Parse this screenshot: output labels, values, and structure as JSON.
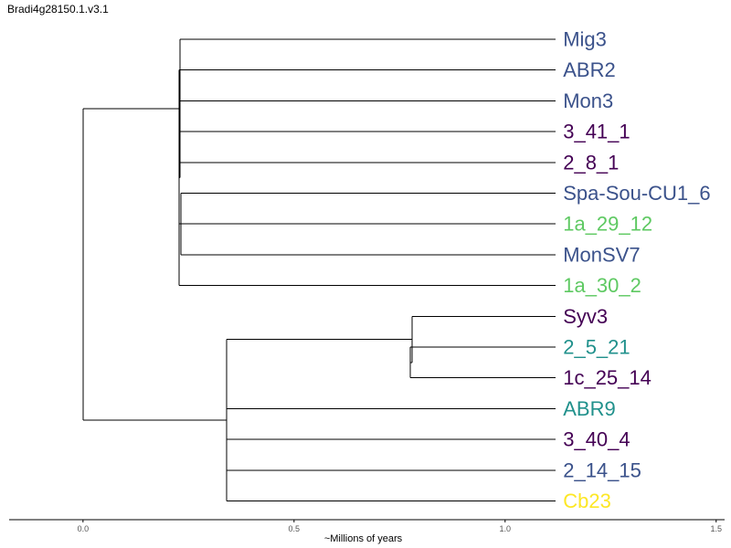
{
  "title": "Bradi4g28150.1.v3.1",
  "colors": {
    "blue": "#3b528b",
    "purple": "#440154",
    "green": "#5ec962",
    "teal": "#21918c",
    "yellow": "#fde725"
  },
  "chart_data": {
    "type": "dendrogram",
    "xlabel": "~Millions of years",
    "xlim": [
      -0.175,
      1.52
    ],
    "xticks": [
      0.0,
      0.5,
      1.0,
      1.5
    ],
    "xtick_labels": [
      "0.0",
      "0.5",
      "1.0",
      "1.5"
    ],
    "tip_x": 1.12,
    "leaves": [
      {
        "name": "Mig3",
        "color": "blue"
      },
      {
        "name": "ABR2",
        "color": "blue"
      },
      {
        "name": "Mon3",
        "color": "blue"
      },
      {
        "name": "3_41_1",
        "color": "purple"
      },
      {
        "name": "2_8_1",
        "color": "purple"
      },
      {
        "name": "Spa-Sou-CU1_6",
        "color": "blue"
      },
      {
        "name": "1a_29_12",
        "color": "green"
      },
      {
        "name": "MonSV7",
        "color": "blue"
      },
      {
        "name": "1a_30_2",
        "color": "green"
      },
      {
        "name": "Syv3",
        "color": "purple"
      },
      {
        "name": "2_5_21",
        "color": "teal"
      },
      {
        "name": "1c_25_14",
        "color": "purple"
      },
      {
        "name": "ABR9",
        "color": "teal"
      },
      {
        "name": "3_40_4",
        "color": "purple"
      },
      {
        "name": "2_14_15",
        "color": "blue"
      },
      {
        "name": "Cb23",
        "color": "yellow"
      }
    ],
    "nodes": [
      {
        "id": "root",
        "x": 0.0,
        "children": [
          "cladeA",
          "cladeB"
        ]
      },
      {
        "id": "cladeA",
        "x": 0.23,
        "children": [
          "cladeA2",
          "Mig3"
        ]
      },
      {
        "id": "cladeA2",
        "x": 0.228,
        "children": [
          "ABR2",
          "Mon3",
          "3_41_1",
          "2_8_1",
          "cladeA3",
          "1a_30_2"
        ]
      },
      {
        "id": "cladeA3",
        "x": 0.232,
        "children": [
          "Spa-Sou-CU1_6",
          "1a_29_12",
          "MonSV7"
        ]
      },
      {
        "id": "cladeB",
        "x": 0.34,
        "children": [
          "cladeB1",
          "ABR9",
          "3_40_4",
          "2_14_15",
          "Cb23"
        ]
      },
      {
        "id": "cladeB1",
        "x": 0.78,
        "children": [
          "Syv3",
          "cladeB2"
        ]
      },
      {
        "id": "cladeB2",
        "x": 0.775,
        "children": [
          "2_5_21",
          "1c_25_14"
        ]
      }
    ]
  }
}
